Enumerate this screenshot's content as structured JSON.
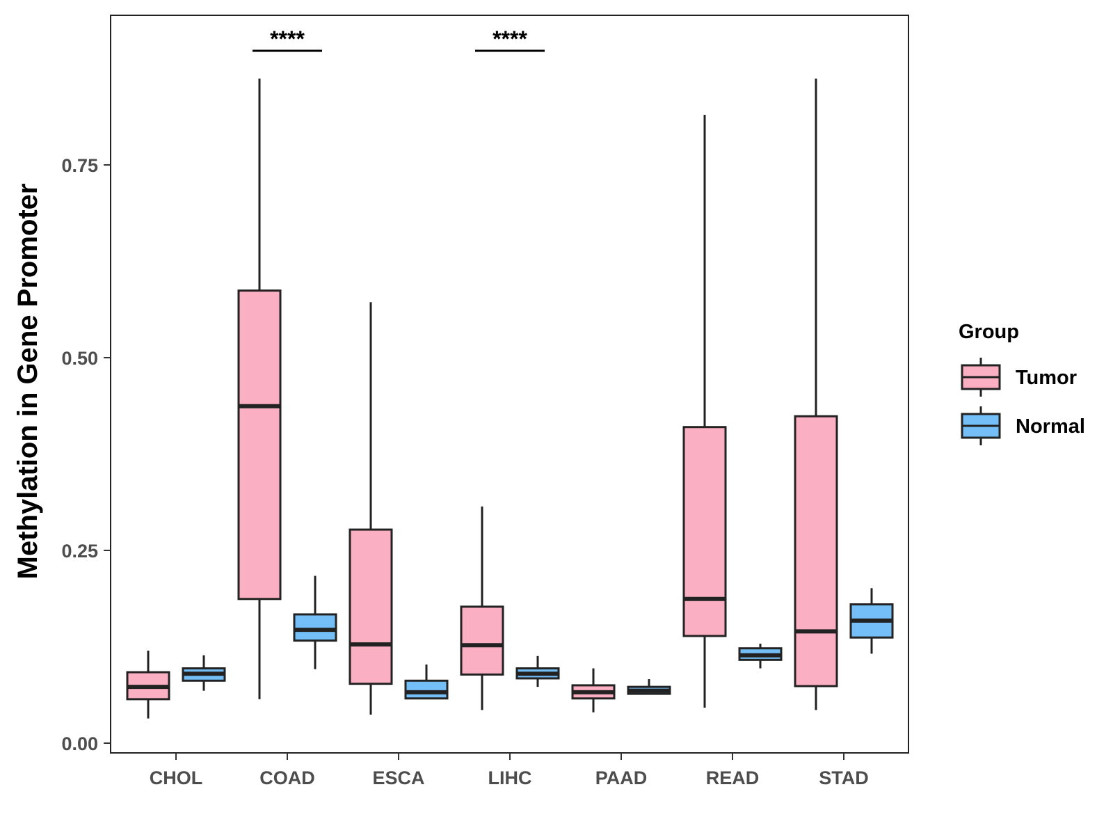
{
  "chart_data": {
    "type": "boxplot",
    "title": "",
    "xlabel": "",
    "ylabel": "Methylation in Gene Promoter",
    "ylim": [
      -0.01,
      0.955
    ],
    "yticks": [
      0.0,
      0.25,
      0.5,
      0.75
    ],
    "ytick_labels": [
      "0.00",
      "0.25",
      "0.50",
      "0.75"
    ],
    "categories": [
      "CHOL",
      "COAD",
      "ESCA",
      "LIHC",
      "PAAD",
      "READ",
      "STAD"
    ],
    "legend": {
      "title": "Group",
      "placement": "right",
      "entries": [
        {
          "name": "Tumor",
          "color": "#FBAFC2"
        },
        {
          "name": "Normal",
          "color": "#74BFF7"
        }
      ]
    },
    "series": [
      {
        "name": "Tumor",
        "color": "#FBAFC2",
        "boxes": [
          {
            "category": "CHOL",
            "whisker_low": 0.032,
            "q1": 0.057,
            "median": 0.073,
            "q3": 0.092,
            "whisker_high": 0.12
          },
          {
            "category": "COAD",
            "whisker_low": 0.057,
            "q1": 0.187,
            "median": 0.437,
            "q3": 0.587,
            "whisker_high": 0.862
          },
          {
            "category": "ESCA",
            "whisker_low": 0.037,
            "q1": 0.077,
            "median": 0.128,
            "q3": 0.277,
            "whisker_high": 0.572
          },
          {
            "category": "LIHC",
            "whisker_low": 0.043,
            "q1": 0.089,
            "median": 0.127,
            "q3": 0.177,
            "whisker_high": 0.307
          },
          {
            "category": "PAAD",
            "whisker_low": 0.04,
            "q1": 0.058,
            "median": 0.066,
            "q3": 0.075,
            "whisker_high": 0.097
          },
          {
            "category": "READ",
            "whisker_low": 0.046,
            "q1": 0.139,
            "median": 0.187,
            "q3": 0.41,
            "whisker_high": 0.815
          },
          {
            "category": "STAD",
            "whisker_low": 0.043,
            "q1": 0.074,
            "median": 0.145,
            "q3": 0.424,
            "whisker_high": 0.862
          }
        ]
      },
      {
        "name": "Normal",
        "color": "#74BFF7",
        "boxes": [
          {
            "category": "CHOL",
            "whisker_low": 0.068,
            "q1": 0.081,
            "median": 0.09,
            "q3": 0.097,
            "whisker_high": 0.114
          },
          {
            "category": "COAD",
            "whisker_low": 0.096,
            "q1": 0.133,
            "median": 0.147,
            "q3": 0.167,
            "whisker_high": 0.217
          },
          {
            "category": "ESCA",
            "whisker_low": 0.057,
            "q1": 0.058,
            "median": 0.066,
            "q3": 0.081,
            "whisker_high": 0.102
          },
          {
            "category": "LIHC",
            "whisker_low": 0.073,
            "q1": 0.084,
            "median": 0.09,
            "q3": 0.097,
            "whisker_high": 0.113
          },
          {
            "category": "PAAD",
            "whisker_low": 0.063,
            "q1": 0.064,
            "median": 0.068,
            "q3": 0.073,
            "whisker_high": 0.083
          },
          {
            "category": "READ",
            "whisker_low": 0.097,
            "q1": 0.108,
            "median": 0.114,
            "q3": 0.123,
            "whisker_high": 0.129
          },
          {
            "category": "STAD",
            "whisker_low": 0.116,
            "q1": 0.137,
            "median": 0.159,
            "q3": 0.18,
            "whisker_high": 0.201
          }
        ]
      }
    ],
    "annotations": [
      {
        "category": "COAD",
        "label": "****",
        "y": 0.898
      },
      {
        "category": "LIHC",
        "label": "****",
        "y": 0.898
      }
    ]
  }
}
